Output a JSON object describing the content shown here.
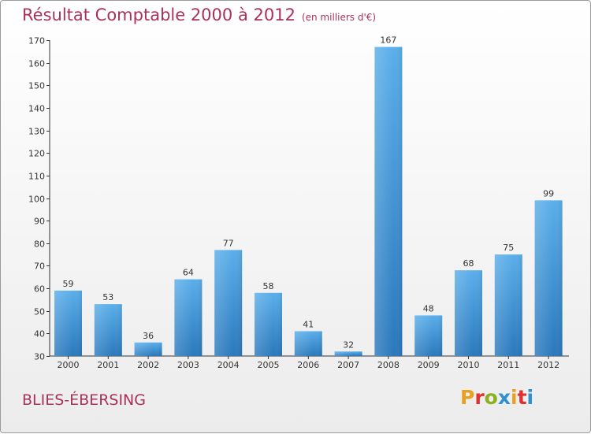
{
  "header": {
    "title": "Résultat Comptable 2000 à 2012",
    "subtitle": "(en milliers d'€)"
  },
  "footer": {
    "commune": "BLIES-ÉBERSING",
    "logo": "Proxiti"
  },
  "colors": {
    "title": "#a8325a",
    "bar_light": "#5aaeea",
    "bar_dark": "#2a78bc",
    "logo": [
      "#e8a020",
      "#e03030",
      "#8ab020",
      "#3090d0",
      "#e8a020",
      "#e03030",
      "#3090d0"
    ]
  },
  "chart_data": {
    "type": "bar",
    "title": "Résultat Comptable 2000 à 2012",
    "xlabel": "",
    "ylabel": "",
    "categories": [
      "2000",
      "2001",
      "2002",
      "2003",
      "2004",
      "2005",
      "2006",
      "2007",
      "2008",
      "2009",
      "2010",
      "2011",
      "2012"
    ],
    "values": [
      59,
      53,
      36,
      64,
      77,
      58,
      41,
      32,
      167,
      48,
      68,
      75,
      99
    ],
    "ylim": [
      30,
      170
    ],
    "yticks": [
      30,
      40,
      50,
      60,
      70,
      80,
      90,
      100,
      110,
      120,
      130,
      140,
      150,
      160,
      170
    ],
    "grid": false,
    "legend": "none"
  }
}
